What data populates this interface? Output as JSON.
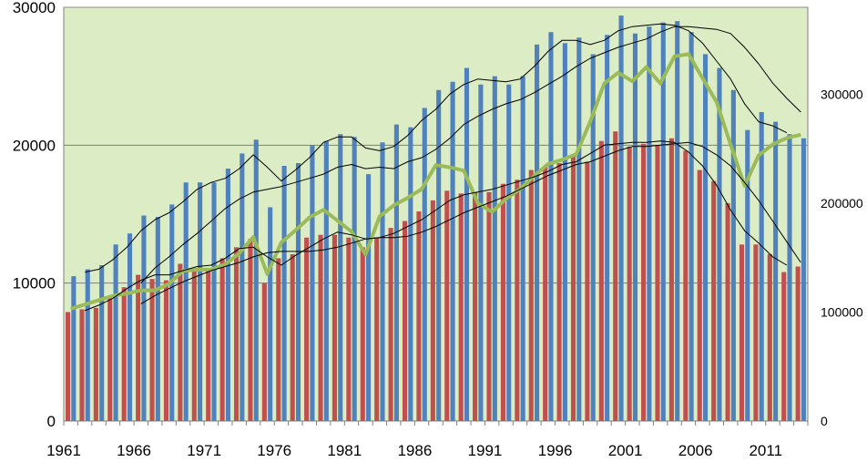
{
  "chart_data": {
    "type": "bar",
    "title": "",
    "xlabel": "",
    "ylabel": "",
    "background_color": "#dcecc4",
    "grid": "y-major-left",
    "legend": "none",
    "x": [
      1961,
      1962,
      1963,
      1964,
      1965,
      1966,
      1967,
      1968,
      1969,
      1970,
      1971,
      1972,
      1973,
      1974,
      1975,
      1976,
      1977,
      1978,
      1979,
      1980,
      1981,
      1982,
      1983,
      1984,
      1985,
      1986,
      1987,
      1988,
      1989,
      1990,
      1991,
      1992,
      1993,
      1994,
      1995,
      1996,
      1997,
      1998,
      1999,
      2000,
      2001,
      2002,
      2003,
      2004,
      2005,
      2006,
      2007,
      2008,
      2009,
      2010,
      2011,
      2012,
      2013
    ],
    "x_tick_labels": [
      "1961",
      "1966",
      "1971",
      "1976",
      "1981",
      "1986",
      "1991",
      "1996",
      "2001",
      "2006",
      "2011"
    ],
    "y_left": {
      "ylim": [
        0,
        30000
      ],
      "ticks": [
        "0",
        "10000",
        "20000",
        "30000"
      ]
    },
    "y_right": {
      "ylim": [
        0,
        380000
      ],
      "ticks": [
        "0",
        "100000",
        "200000",
        "300000"
      ]
    },
    "series": [
      {
        "type": "bar",
        "axis": "left",
        "color": "#4f81bd",
        "values": [
          10500,
          11000,
          11300,
          12800,
          13600,
          14900,
          14800,
          15700,
          17300,
          17300,
          17300,
          18300,
          19400,
          20400,
          15500,
          18500,
          18700,
          20000,
          20300,
          20800,
          20600,
          17900,
          20200,
          21500,
          21300,
          22700,
          24000,
          24600,
          25600,
          24400,
          25000,
          24400,
          25000,
          27300,
          28200,
          27400,
          27800,
          26600,
          28000,
          29400,
          28100,
          28600,
          28900,
          29000,
          28200,
          26600,
          25600,
          24000,
          21100,
          22400,
          21700,
          20800,
          20500
        ]
      },
      {
        "type": "bar",
        "axis": "left",
        "color": "#c0504d",
        "values": [
          7900,
          8100,
          8200,
          8900,
          9700,
          10600,
          10300,
          10200,
          11400,
          11000,
          11100,
          11800,
          12600,
          13200,
          10000,
          11800,
          12100,
          13300,
          13500,
          13500,
          13300,
          12600,
          13300,
          14000,
          14500,
          15200,
          16000,
          16700,
          16500,
          16600,
          16600,
          17200,
          17500,
          18200,
          18500,
          18700,
          19200,
          18800,
          20300,
          21000,
          19900,
          20100,
          20000,
          20500,
          19600,
          18200,
          17400,
          15800,
          12800,
          12800,
          12100,
          10800,
          11200
        ]
      },
      {
        "type": "line",
        "axis": "right",
        "color": "#9bbb59",
        "values": [
          103000,
          107000,
          111000,
          115000,
          117000,
          120000,
          120000,
          126000,
          138000,
          139000,
          139000,
          144000,
          154000,
          169000,
          135000,
          164000,
          175000,
          187000,
          194000,
          184000,
          174000,
          153000,
          188000,
          198000,
          205000,
          213000,
          235000,
          233000,
          230000,
          200000,
          192000,
          204000,
          213000,
          225000,
          236000,
          240000,
          245000,
          275000,
          310000,
          320000,
          312000,
          325000,
          310000,
          335000,
          337000,
          315000,
          293000,
          254000,
          216000,
          244000,
          254000,
          260000,
          263000
        ]
      },
      {
        "type": "line",
        "axis": "left",
        "color": "#000000",
        "values": [
          null,
          10800,
          11000,
          11700,
          12600,
          13800,
          14600,
          15100,
          15900,
          16800,
          17300,
          17600,
          18300,
          19300,
          18400,
          17400,
          18200,
          19100,
          20200,
          20600,
          20600,
          19800,
          19600,
          19900,
          20700,
          21800,
          22600,
          23700,
          24400,
          24800,
          24700,
          24600,
          24800,
          25700,
          26800,
          27600,
          27600,
          27300,
          27600,
          28300,
          28600,
          28700,
          28800,
          28700,
          28300,
          27400,
          26100,
          24800,
          23000,
          21700,
          21400,
          20900,
          null
        ]
      },
      {
        "type": "line",
        "axis": "left",
        "color": "#000000",
        "values": [
          null,
          null,
          null,
          null,
          null,
          10000,
          11100,
          11900,
          12800,
          13600,
          14500,
          15400,
          16100,
          16600,
          16800,
          17000,
          17300,
          17600,
          17900,
          18400,
          18600,
          18300,
          18400,
          18300,
          18800,
          19100,
          19700,
          20500,
          21500,
          22100,
          22600,
          23000,
          23300,
          23800,
          24400,
          25000,
          25700,
          26300,
          26700,
          27100,
          27400,
          27700,
          28200,
          28600,
          28600,
          28500,
          28400,
          28100,
          27100,
          25900,
          24500,
          23400,
          22400
        ]
      },
      {
        "type": "line",
        "axis": "left",
        "color": "#000000",
        "values": [
          null,
          8000,
          8400,
          8900,
          9600,
          10200,
          10600,
          10600,
          10900,
          11200,
          11300,
          11800,
          12500,
          12600,
          11900,
          11300,
          12000,
          12600,
          13200,
          13700,
          13500,
          13200,
          13300,
          13600,
          14100,
          14600,
          15300,
          16000,
          16400,
          16600,
          16800,
          17100,
          17400,
          17700,
          18100,
          18600,
          18800,
          19400,
          20000,
          20100,
          20200,
          20200,
          20300,
          20200,
          19500,
          18500,
          17100,
          15300,
          13800,
          12900,
          11900,
          11300,
          null
        ]
      },
      {
        "type": "line",
        "axis": "left",
        "color": "#000000",
        "values": [
          null,
          null,
          null,
          null,
          null,
          8500,
          9100,
          9600,
          10100,
          10500,
          10900,
          11200,
          11500,
          11900,
          12200,
          12300,
          12300,
          12300,
          12400,
          12600,
          12900,
          13200,
          13300,
          13300,
          13400,
          13700,
          14100,
          14600,
          15100,
          15500,
          15900,
          16300,
          16800,
          17300,
          17800,
          18200,
          18600,
          18800,
          19200,
          19600,
          19900,
          19900,
          20000,
          20100,
          20200,
          19900,
          19300,
          18500,
          17300,
          16000,
          14500,
          13000,
          11500
        ]
      }
    ]
  }
}
